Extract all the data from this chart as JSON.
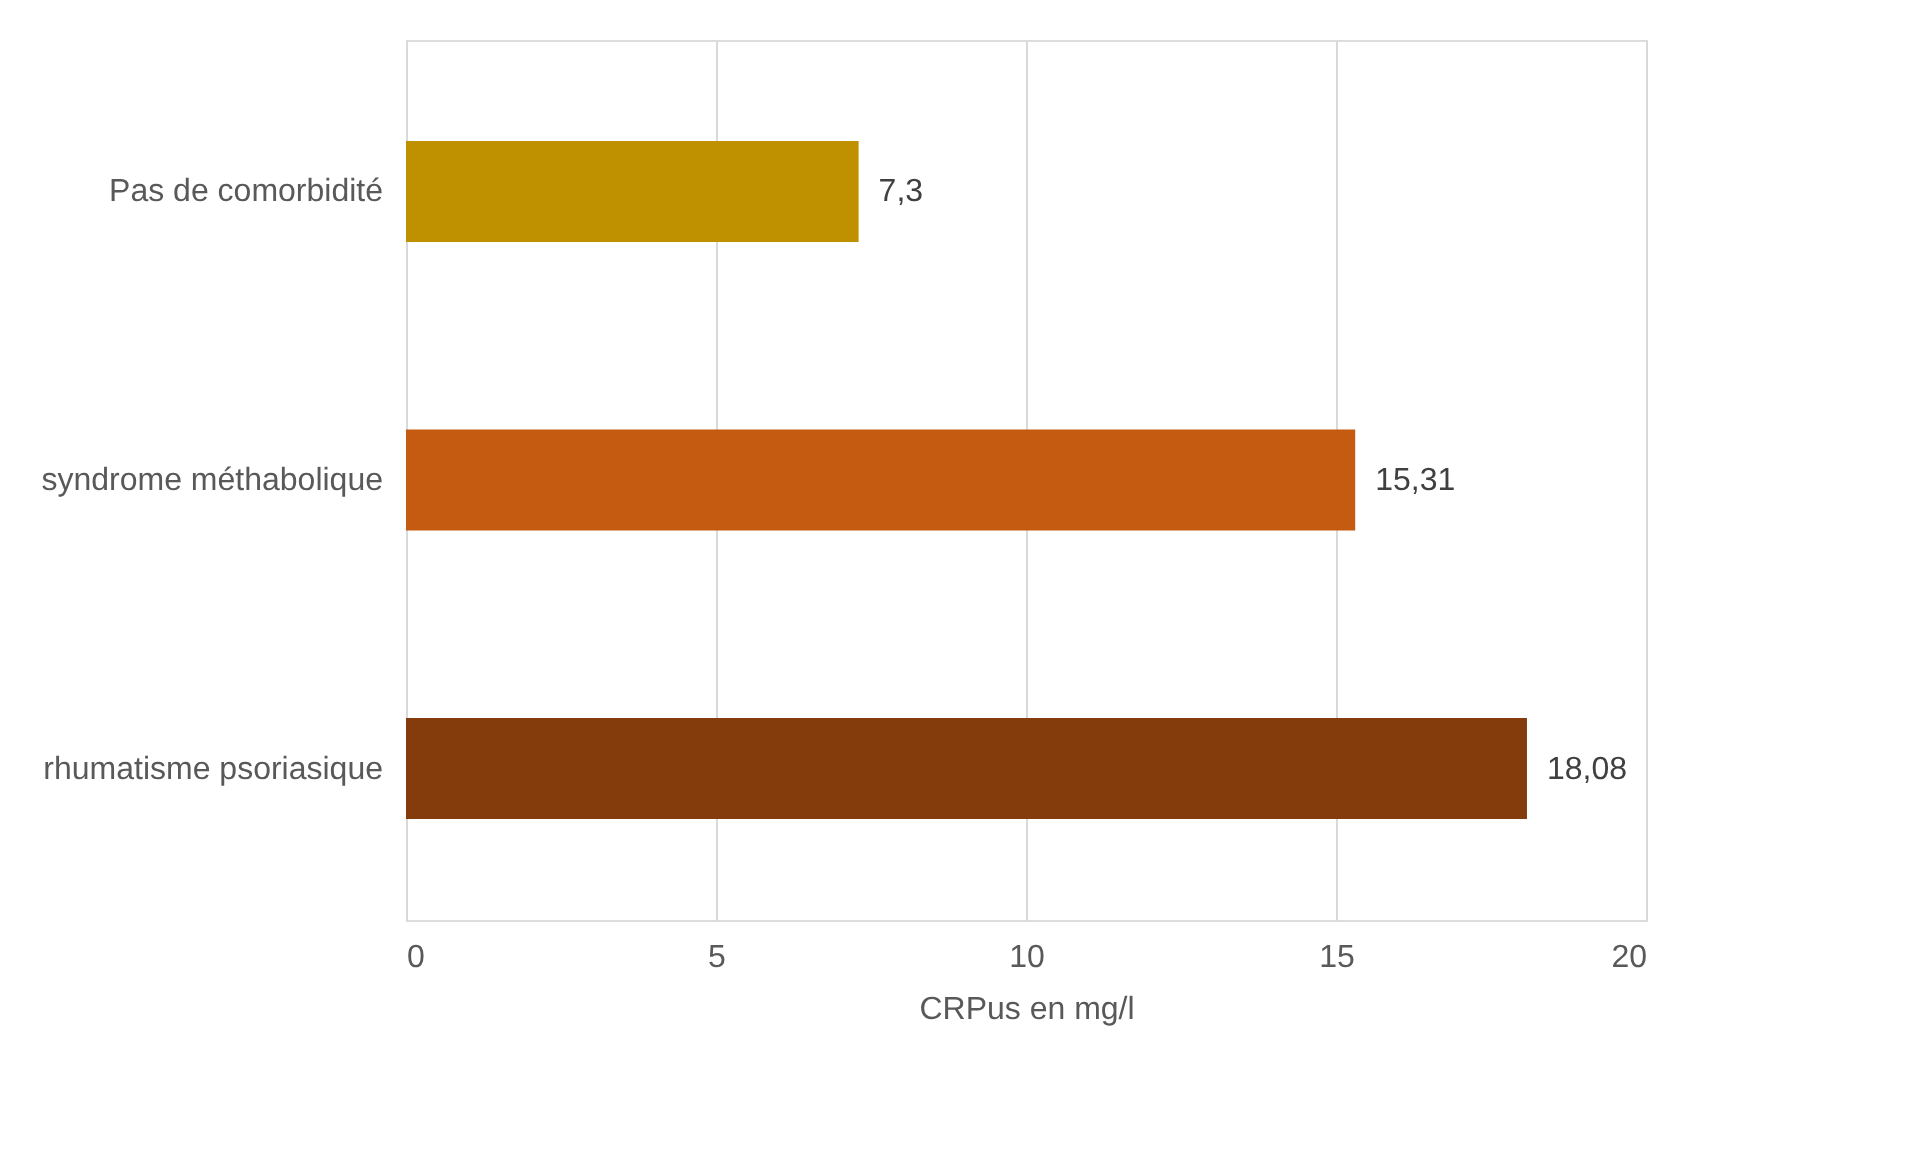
{
  "chart_data": {
    "type": "bar",
    "orientation": "horizontal",
    "xlabel": "CRPus en mg/l",
    "categories": [
      "Pas de comorbidité",
      "syndrome méthabolique",
      "rhumatisme psoriasique"
    ],
    "values": [
      7.3,
      15.31,
      18.08
    ],
    "colors": [
      "#bf9000",
      "#c55a11",
      "#843c0c"
    ],
    "value_labels": [
      "7,3",
      "15,31",
      "18,08"
    ],
    "xlim": [
      0,
      20
    ],
    "xticks": [
      0,
      5,
      10,
      15,
      20
    ],
    "grid": "x"
  }
}
